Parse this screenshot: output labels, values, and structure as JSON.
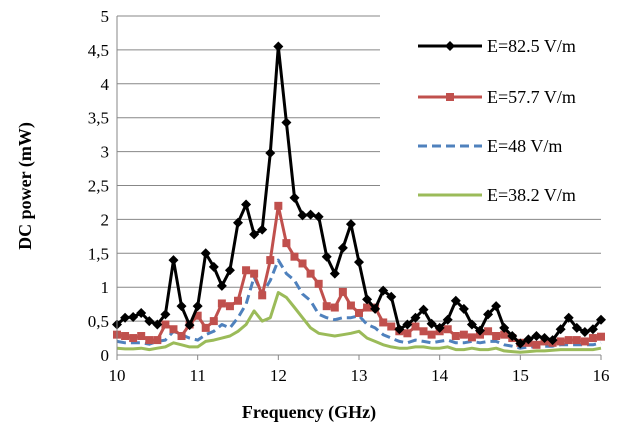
{
  "chart_data": {
    "type": "line",
    "xlabel": "Frequency (GHz)",
    "ylabel": "DC power (mW)",
    "xlim": [
      10,
      16
    ],
    "ylim": [
      0,
      5
    ],
    "x_ticks": [
      "10",
      "11",
      "12",
      "13",
      "14",
      "15",
      "16"
    ],
    "y_ticks": [
      "0",
      "0,5",
      "1",
      "1,5",
      "2",
      "2,5",
      "3",
      "3,5",
      "4",
      "4,5",
      "5"
    ],
    "grid": "horizontal",
    "legend_position": "right",
    "x": [
      10.0,
      10.1,
      10.2,
      10.3,
      10.4,
      10.5,
      10.6,
      10.7,
      10.8,
      10.9,
      11.0,
      11.1,
      11.2,
      11.3,
      11.4,
      11.5,
      11.6,
      11.7,
      11.8,
      11.9,
      12.0,
      12.1,
      12.2,
      12.3,
      12.4,
      12.5,
      12.6,
      12.7,
      12.8,
      12.9,
      13.0,
      13.1,
      13.2,
      13.3,
      13.4,
      13.5,
      13.6,
      13.7,
      13.8,
      13.9,
      14.0,
      14.1,
      14.2,
      14.3,
      14.4,
      14.5,
      14.6,
      14.7,
      14.8,
      14.9,
      15.0,
      15.1,
      15.2,
      15.3,
      15.4,
      15.5,
      15.6,
      15.7,
      15.8,
      15.9,
      16.0
    ],
    "series": [
      {
        "name": "E=82.5 V/m",
        "color": "#000000",
        "dash": "solid",
        "marker": "diamond",
        "values": [
          0.45,
          0.55,
          0.56,
          0.62,
          0.5,
          0.45,
          0.6,
          1.4,
          0.72,
          0.44,
          0.72,
          1.5,
          1.3,
          1.02,
          1.25,
          1.95,
          2.22,
          1.78,
          1.85,
          2.98,
          4.55,
          3.43,
          2.32,
          2.06,
          2.07,
          2.04,
          1.45,
          1.2,
          1.58,
          1.93,
          1.37,
          0.82,
          0.68,
          0.95,
          0.86,
          0.38,
          0.45,
          0.55,
          0.67,
          0.46,
          0.4,
          0.52,
          0.8,
          0.68,
          0.45,
          0.36,
          0.6,
          0.72,
          0.4,
          0.28,
          0.17,
          0.23,
          0.28,
          0.25,
          0.22,
          0.38,
          0.55,
          0.4,
          0.34,
          0.38,
          0.52
        ]
      },
      {
        "name": "E=57.7 V/m",
        "color": "#c0504d",
        "dash": "solid",
        "marker": "square",
        "values": [
          0.3,
          0.28,
          0.25,
          0.28,
          0.22,
          0.22,
          0.45,
          0.38,
          0.28,
          0.45,
          0.58,
          0.4,
          0.5,
          0.76,
          0.72,
          0.8,
          1.25,
          1.2,
          0.88,
          1.4,
          2.2,
          1.65,
          1.45,
          1.35,
          1.2,
          1.05,
          0.72,
          0.7,
          0.93,
          0.73,
          0.62,
          0.7,
          0.7,
          0.48,
          0.42,
          0.35,
          0.32,
          0.42,
          0.35,
          0.3,
          0.35,
          0.38,
          0.28,
          0.3,
          0.26,
          0.3,
          0.35,
          0.28,
          0.3,
          0.25,
          0.18,
          0.18,
          0.15,
          0.2,
          0.18,
          0.2,
          0.22,
          0.22,
          0.2,
          0.25,
          0.27
        ]
      },
      {
        "name": "E=48 V/m",
        "color": "#4f81bd",
        "dash": "dashed",
        "marker": "none",
        "values": [
          0.2,
          0.18,
          0.18,
          0.18,
          0.16,
          0.2,
          0.22,
          0.35,
          0.3,
          0.25,
          0.22,
          0.3,
          0.35,
          0.45,
          0.4,
          0.55,
          0.75,
          1.15,
          0.9,
          1.1,
          1.4,
          1.2,
          1.1,
          0.9,
          0.8,
          0.6,
          0.55,
          0.52,
          0.55,
          0.55,
          0.58,
          0.45,
          0.4,
          0.3,
          0.25,
          0.2,
          0.18,
          0.22,
          0.2,
          0.18,
          0.2,
          0.22,
          0.18,
          0.18,
          0.2,
          0.18,
          0.2,
          0.2,
          0.15,
          0.13,
          0.1,
          0.12,
          0.12,
          0.13,
          0.13,
          0.15,
          0.15,
          0.15,
          0.15,
          0.15,
          0.18
        ]
      },
      {
        "name": "E=38.2 V/m",
        "color": "#9bbb59",
        "dash": "solid",
        "marker": "none",
        "values": [
          0.1,
          0.09,
          0.09,
          0.1,
          0.08,
          0.1,
          0.12,
          0.18,
          0.15,
          0.12,
          0.12,
          0.2,
          0.22,
          0.25,
          0.28,
          0.35,
          0.45,
          0.65,
          0.5,
          0.55,
          0.92,
          0.85,
          0.7,
          0.55,
          0.4,
          0.32,
          0.3,
          0.28,
          0.3,
          0.32,
          0.35,
          0.25,
          0.2,
          0.15,
          0.12,
          0.1,
          0.1,
          0.12,
          0.12,
          0.1,
          0.1,
          0.12,
          0.08,
          0.08,
          0.1,
          0.08,
          0.08,
          0.1,
          0.06,
          0.05,
          0.04,
          0.05,
          0.06,
          0.06,
          0.07,
          0.08,
          0.08,
          0.08,
          0.08,
          0.08,
          0.1
        ]
      }
    ]
  }
}
